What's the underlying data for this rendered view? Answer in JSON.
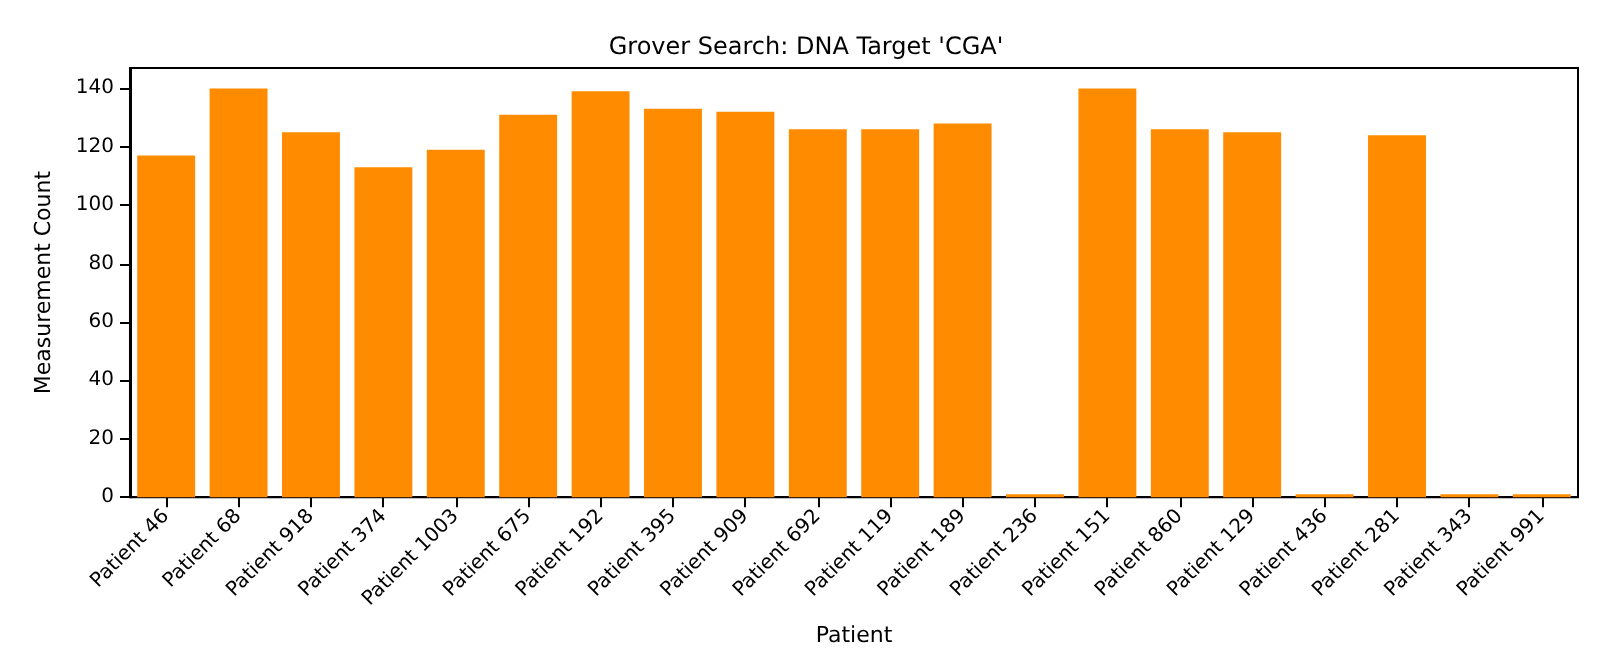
{
  "chart_data": {
    "type": "bar",
    "title": "Grover Search: DNA Target 'CGA'",
    "xlabel": "Patient",
    "ylabel": "Measurement Count",
    "categories": [
      "Patient 46",
      "Patient 68",
      "Patient 918",
      "Patient 374",
      "Patient 1003",
      "Patient 675",
      "Patient 192",
      "Patient 395",
      "Patient 909",
      "Patient 692",
      "Patient 119",
      "Patient 189",
      "Patient 236",
      "Patient 151",
      "Patient 860",
      "Patient 129",
      "Patient 436",
      "Patient 281",
      "Patient 343",
      "Patient 991"
    ],
    "values": [
      117,
      140,
      125,
      113,
      119,
      131,
      139,
      133,
      132,
      126,
      126,
      128,
      1,
      140,
      126,
      125,
      1,
      124,
      1,
      1
    ],
    "color": "#ff8c00",
    "ylim": [
      0,
      147
    ],
    "yticks": [
      0,
      20,
      40,
      60,
      80,
      100,
      120,
      140
    ],
    "grid": false
  }
}
